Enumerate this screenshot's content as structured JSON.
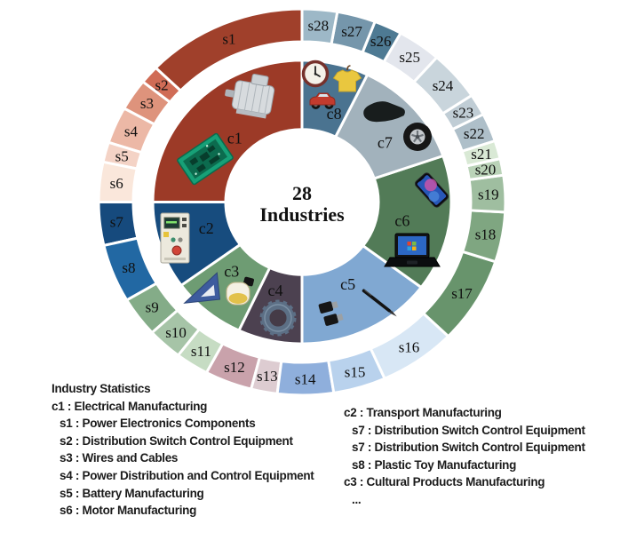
{
  "chart_data": {
    "type": "pie",
    "variant": "double-ring-donut",
    "title": "28 Industries",
    "center_label": {
      "line1": "28",
      "line2": "Industries"
    },
    "angle_convention": "degrees counterclockwise from 12 o'clock",
    "legend_position": "bottom",
    "outer_ring": [
      {
        "id": "s1",
        "label": "s1",
        "start": 0,
        "end": 46,
        "color": "#A0402B"
      },
      {
        "id": "s2",
        "label": "s2",
        "start": 46,
        "end": 51.5,
        "color": "#D06C56"
      },
      {
        "id": "s3",
        "label": "s3",
        "start": 51.5,
        "end": 61,
        "color": "#DE937C"
      },
      {
        "id": "s4",
        "label": "s4",
        "start": 61,
        "end": 72,
        "color": "#ECB8A6"
      },
      {
        "id": "s5",
        "label": "s5",
        "start": 72,
        "end": 78,
        "color": "#F4D3C6"
      },
      {
        "id": "s6",
        "label": "s6",
        "start": 78,
        "end": 90,
        "color": "#FAE7DB"
      },
      {
        "id": "s7",
        "label": "s7",
        "start": 90,
        "end": 103,
        "color": "#164A7D"
      },
      {
        "id": "s8",
        "label": "s8",
        "start": 103,
        "end": 120.5,
        "color": "#2268A3"
      },
      {
        "id": "s9",
        "label": "s9",
        "start": 120.5,
        "end": 132.5,
        "color": "#84AC88"
      },
      {
        "id": "s10",
        "label": "s10",
        "start": 132.5,
        "end": 142.5,
        "color": "#A6C4A7"
      },
      {
        "id": "s11",
        "label": "s11",
        "start": 142.5,
        "end": 152,
        "color": "#C6DCC3"
      },
      {
        "id": "s12",
        "label": "s12",
        "start": 152,
        "end": 165.5,
        "color": "#C9A2AB"
      },
      {
        "id": "s13",
        "label": "s13",
        "start": 165.5,
        "end": 173,
        "color": "#DDCCD1"
      },
      {
        "id": "s14",
        "label": "s14",
        "start": 173,
        "end": 189,
        "color": "#8FAFDC"
      },
      {
        "id": "s15",
        "label": "s15",
        "start": 189,
        "end": 204,
        "color": "#B9D2ED"
      },
      {
        "id": "s16",
        "label": "s16",
        "start": 204,
        "end": 226,
        "color": "#D8E7F5"
      },
      {
        "id": "s17",
        "label": "s17",
        "start": 226,
        "end": 252,
        "color": "#68946C"
      },
      {
        "id": "s18",
        "label": "s18",
        "start": 252,
        "end": 267,
        "color": "#7FA681"
      },
      {
        "id": "s19",
        "label": "s19",
        "start": 267,
        "end": 278,
        "color": "#9FBEA0"
      },
      {
        "id": "s20",
        "label": "s20",
        "start": 278,
        "end": 283,
        "color": "#BAD3B8"
      },
      {
        "id": "s21",
        "label": "s21",
        "start": 283,
        "end": 288.5,
        "color": "#D9E9D5"
      },
      {
        "id": "s22",
        "label": "s22",
        "start": 288.5,
        "end": 297,
        "color": "#AEBFC9"
      },
      {
        "id": "s23",
        "label": "s23",
        "start": 297,
        "end": 303.5,
        "color": "#C0CDD5"
      },
      {
        "id": "s24",
        "label": "s24",
        "start": 303.5,
        "end": 318.5,
        "color": "#C9D5DC"
      },
      {
        "id": "s25",
        "label": "s25",
        "start": 318.5,
        "end": 331,
        "color": "#E3E6ED"
      },
      {
        "id": "s26",
        "label": "s26",
        "start": 331,
        "end": 339,
        "color": "#4E7A93"
      },
      {
        "id": "s27",
        "label": "s27",
        "start": 339,
        "end": 350,
        "color": "#7596AB"
      },
      {
        "id": "s28",
        "label": "s28",
        "start": 350,
        "end": 360,
        "color": "#9DB8C7"
      }
    ],
    "inner_ring": [
      {
        "id": "c1",
        "label": "c1",
        "start": 0,
        "end": 90,
        "color": "#9C3A27",
        "label_angle": 45,
        "label_r": 107,
        "images": [
          "electric-motor",
          "circuit-board"
        ]
      },
      {
        "id": "c2",
        "label": "c2",
        "start": 90,
        "end": 126,
        "color": "#174C7E",
        "label_angle": 106,
        "label_r": 112,
        "images": [
          "control-panel"
        ]
      },
      {
        "id": "c3",
        "label": "c3",
        "start": 126,
        "end": 155,
        "color": "#6E9C73",
        "label_angle": 136,
        "label_r": 114,
        "images": [
          "set-square",
          "perfume-bottle"
        ]
      },
      {
        "id": "c4",
        "label": "c4",
        "start": 155,
        "end": 180,
        "color": "#4C4150",
        "label_angle": 164,
        "label_r": 109,
        "images": [
          "gear"
        ]
      },
      {
        "id": "c5",
        "label": "c5",
        "start": 180,
        "end": 233,
        "color": "#80A8D2",
        "label_angle": 208,
        "label_r": 110,
        "images": [
          "usb-adapters",
          "stylus-pen"
        ]
      },
      {
        "id": "c6",
        "label": "c6",
        "start": 233,
        "end": 289,
        "color": "#527B57",
        "label_angle": 259,
        "label_r": 115,
        "images": [
          "smartphone",
          "laptop"
        ]
      },
      {
        "id": "c7",
        "label": "c7",
        "start": 289,
        "end": 334,
        "color": "#A2B2BC",
        "label_angle": 307,
        "label_r": 117,
        "images": [
          "shoe-sole",
          "tire"
        ]
      },
      {
        "id": "c8",
        "label": "c8",
        "start": 334,
        "end": 360,
        "color": "#4A7390",
        "label_angle": 341,
        "label_r": 111,
        "images": [
          "wall-clock",
          "t-shirt",
          "toy-car"
        ]
      }
    ],
    "legend": {
      "title": "Industry Statistics",
      "left_column": [
        {
          "text": "c1 : Electrical Manufacturing",
          "indent": false
        },
        {
          "text": "s1 : Power Electronics Components",
          "indent": true
        },
        {
          "text": "s2 : Distribution Switch Control Equipment",
          "indent": true
        },
        {
          "text": "s3 : Wires and Cables",
          "indent": true
        },
        {
          "text": "s4 : Power Distribution and Control Equipment",
          "indent": true
        },
        {
          "text": "s5 : Battery Manufacturing",
          "indent": true
        },
        {
          "text": "s6 : Motor Manufacturing",
          "indent": true
        }
      ],
      "right_column": [
        {
          "text": "c2 : Transport Manufacturing",
          "indent": false
        },
        {
          "text": "s7 : Distribution Switch Control Equipment",
          "indent": true
        },
        {
          "text": "s7 : Distribution Switch Control Equipment",
          "indent": true
        },
        {
          "text": "s8 : Plastic Toy Manufacturing",
          "indent": true
        },
        {
          "text": "c3 : Cultural Products Manufacturing",
          "indent": false
        },
        {
          "text": "...",
          "indent": true
        }
      ]
    }
  }
}
